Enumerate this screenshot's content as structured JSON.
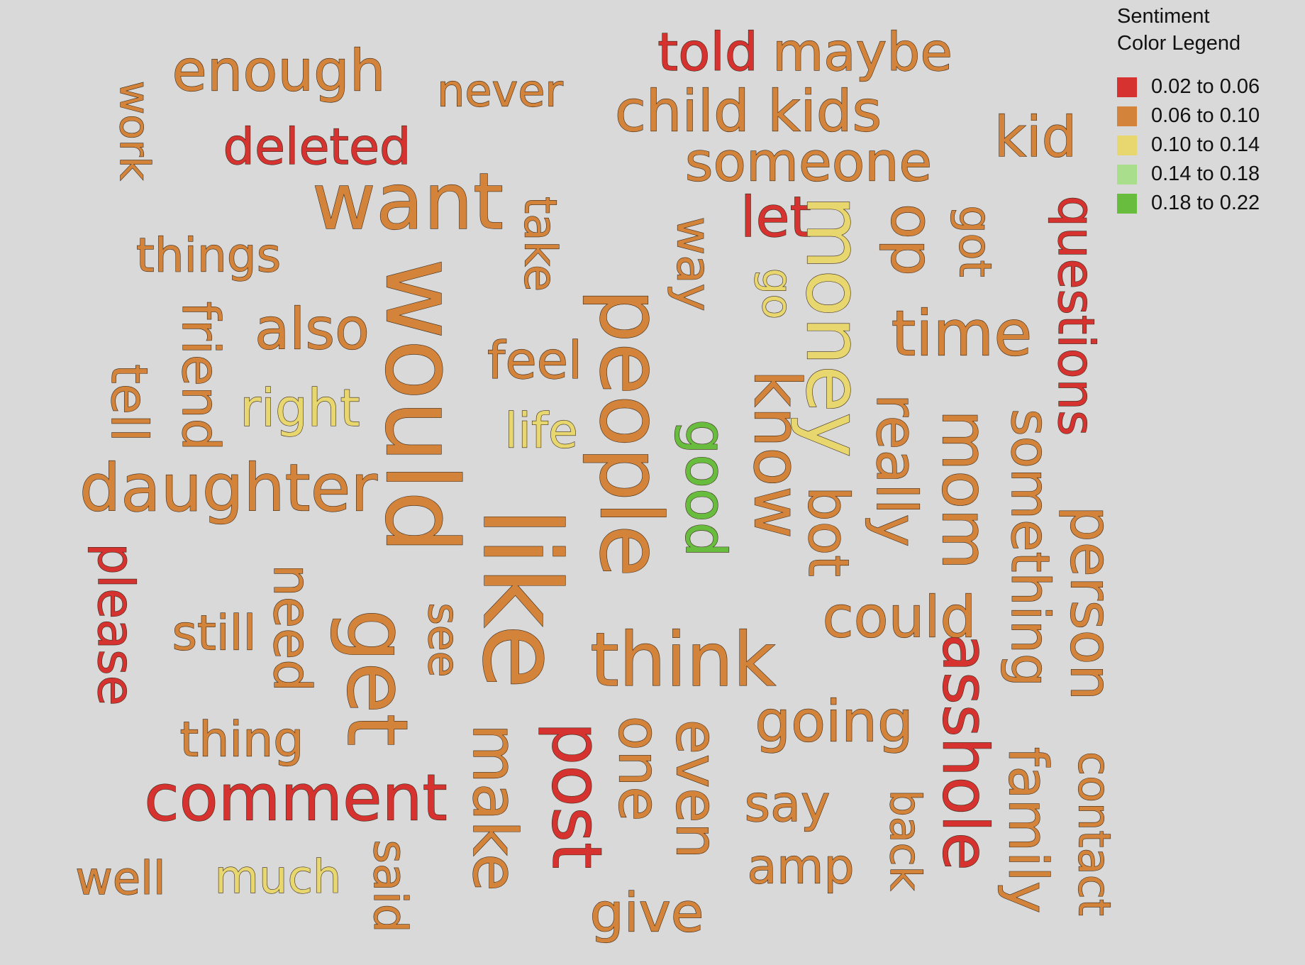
{
  "legend": {
    "title_line1": "Sentiment",
    "title_line2": "Color Legend",
    "items": [
      {
        "label": "0.02 to 0.06",
        "color": "#d63330"
      },
      {
        "label": "0.06 to 0.10",
        "color": "#d4843a"
      },
      {
        "label": "0.10 to 0.14",
        "color": "#e8d66e"
      },
      {
        "label": "0.14 to 0.18",
        "color": "#a9df8c"
      },
      {
        "label": "0.18 to 0.22",
        "color": "#68bd3f"
      }
    ]
  },
  "chart_data": {
    "type": "wordcloud",
    "words": [
      {
        "text": "enough",
        "bin": 1,
        "rotate": 0
      },
      {
        "text": "never",
        "bin": 1,
        "rotate": 0
      },
      {
        "text": "told",
        "bin": 0,
        "rotate": 0
      },
      {
        "text": "maybe",
        "bin": 1,
        "rotate": 0
      },
      {
        "text": "child kids",
        "bin": 1,
        "rotate": 0
      },
      {
        "text": "kid",
        "bin": 1,
        "rotate": 0
      },
      {
        "text": "work",
        "bin": 1,
        "rotate": 90
      },
      {
        "text": "deleted",
        "bin": 0,
        "rotate": 0
      },
      {
        "text": "someone",
        "bin": 1,
        "rotate": 0
      },
      {
        "text": "want",
        "bin": 1,
        "rotate": 0
      },
      {
        "text": "take",
        "bin": 1,
        "rotate": 90
      },
      {
        "text": "let",
        "bin": 0,
        "rotate": 0
      },
      {
        "text": "money",
        "bin": 2,
        "rotate": 90
      },
      {
        "text": "op",
        "bin": 1,
        "rotate": 90
      },
      {
        "text": "got",
        "bin": 1,
        "rotate": 90
      },
      {
        "text": "questions",
        "bin": 0,
        "rotate": 90
      },
      {
        "text": "things",
        "bin": 1,
        "rotate": 0
      },
      {
        "text": "way",
        "bin": 1,
        "rotate": 90
      },
      {
        "text": "go",
        "bin": 2,
        "rotate": 90
      },
      {
        "text": "would",
        "bin": 1,
        "rotate": 90
      },
      {
        "text": "friend",
        "bin": 1,
        "rotate": 90
      },
      {
        "text": "also",
        "bin": 1,
        "rotate": 0
      },
      {
        "text": "people",
        "bin": 1,
        "rotate": 90
      },
      {
        "text": "time",
        "bin": 1,
        "rotate": 0
      },
      {
        "text": "feel",
        "bin": 1,
        "rotate": 0
      },
      {
        "text": "tell",
        "bin": 1,
        "rotate": 90
      },
      {
        "text": "right",
        "bin": 2,
        "rotate": 0
      },
      {
        "text": "life",
        "bin": 2,
        "rotate": 0
      },
      {
        "text": "good",
        "bin": 4,
        "rotate": 90
      },
      {
        "text": "know",
        "bin": 1,
        "rotate": 90
      },
      {
        "text": "really",
        "bin": 1,
        "rotate": 90
      },
      {
        "text": "mom",
        "bin": 1,
        "rotate": 90
      },
      {
        "text": "something",
        "bin": 1,
        "rotate": 90
      },
      {
        "text": "daughter",
        "bin": 1,
        "rotate": 0
      },
      {
        "text": "like",
        "bin": 1,
        "rotate": 90
      },
      {
        "text": "bot",
        "bin": 1,
        "rotate": 90
      },
      {
        "text": "person",
        "bin": 1,
        "rotate": 90
      },
      {
        "text": "please",
        "bin": 0,
        "rotate": 90
      },
      {
        "text": "need",
        "bin": 1,
        "rotate": 90
      },
      {
        "text": "still",
        "bin": 1,
        "rotate": 0
      },
      {
        "text": "get",
        "bin": 1,
        "rotate": 90
      },
      {
        "text": "see",
        "bin": 1,
        "rotate": 90
      },
      {
        "text": "could",
        "bin": 1,
        "rotate": 0
      },
      {
        "text": "think",
        "bin": 1,
        "rotate": 0
      },
      {
        "text": "asshole",
        "bin": 0,
        "rotate": 90
      },
      {
        "text": "thing",
        "bin": 1,
        "rotate": 0
      },
      {
        "text": "going",
        "bin": 1,
        "rotate": 0
      },
      {
        "text": "comment",
        "bin": 0,
        "rotate": 0
      },
      {
        "text": "make",
        "bin": 1,
        "rotate": 90
      },
      {
        "text": "post",
        "bin": 0,
        "rotate": 90
      },
      {
        "text": "one",
        "bin": 1,
        "rotate": 90
      },
      {
        "text": "even",
        "bin": 1,
        "rotate": 90
      },
      {
        "text": "say",
        "bin": 1,
        "rotate": 0
      },
      {
        "text": "family",
        "bin": 1,
        "rotate": 90
      },
      {
        "text": "contact",
        "bin": 1,
        "rotate": 90
      },
      {
        "text": "back",
        "bin": 1,
        "rotate": 90
      },
      {
        "text": "amp",
        "bin": 1,
        "rotate": 0
      },
      {
        "text": "well",
        "bin": 1,
        "rotate": 0
      },
      {
        "text": "much",
        "bin": 2,
        "rotate": 0
      },
      {
        "text": "said",
        "bin": 1,
        "rotate": 90
      },
      {
        "text": "give",
        "bin": 1,
        "rotate": 0
      }
    ]
  }
}
